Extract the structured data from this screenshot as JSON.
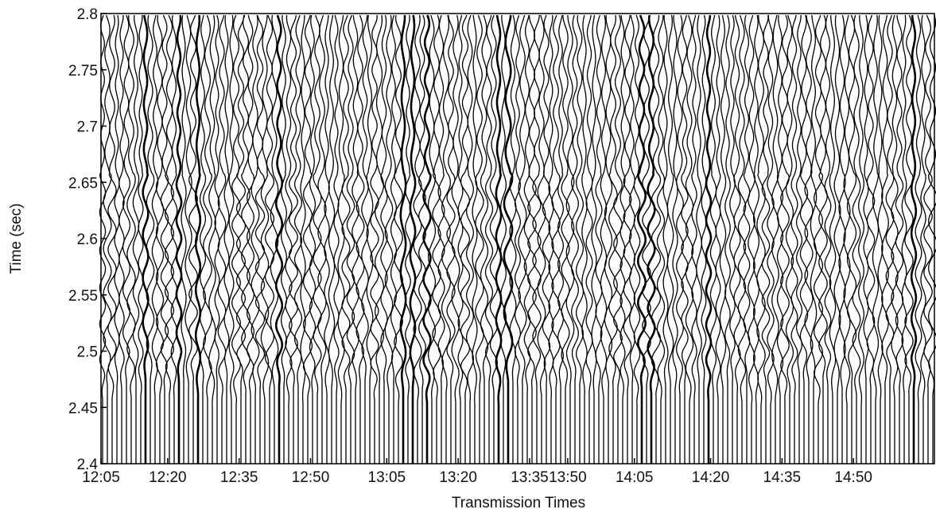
{
  "chart_data": {
    "type": "wiggle",
    "xlabel": "Transmission Times",
    "ylabel": "Time (sec)",
    "xlim": [
      0,
      175
    ],
    "xticks": [
      {
        "value": 0,
        "label": "12:05"
      },
      {
        "value": 14,
        "label": "12:20"
      },
      {
        "value": 29,
        "label": "12:35"
      },
      {
        "value": 44,
        "label": "12:50"
      },
      {
        "value": 60,
        "label": "13:05"
      },
      {
        "value": 75,
        "label": "13:20"
      },
      {
        "value": 90,
        "label": "13:35"
      },
      {
        "value": 98,
        "label": "13:50"
      },
      {
        "value": 112,
        "label": "14:05"
      },
      {
        "value": 128,
        "label": "14:20"
      },
      {
        "value": 143,
        "label": "14:35"
      },
      {
        "value": 158,
        "label": "14:50"
      }
    ],
    "ylim": [
      2.4,
      2.8
    ],
    "yticks": [
      2.4,
      2.45,
      2.5,
      2.55,
      2.6,
      2.65,
      2.7,
      2.75,
      2.8
    ],
    "color": "#000000"
  }
}
